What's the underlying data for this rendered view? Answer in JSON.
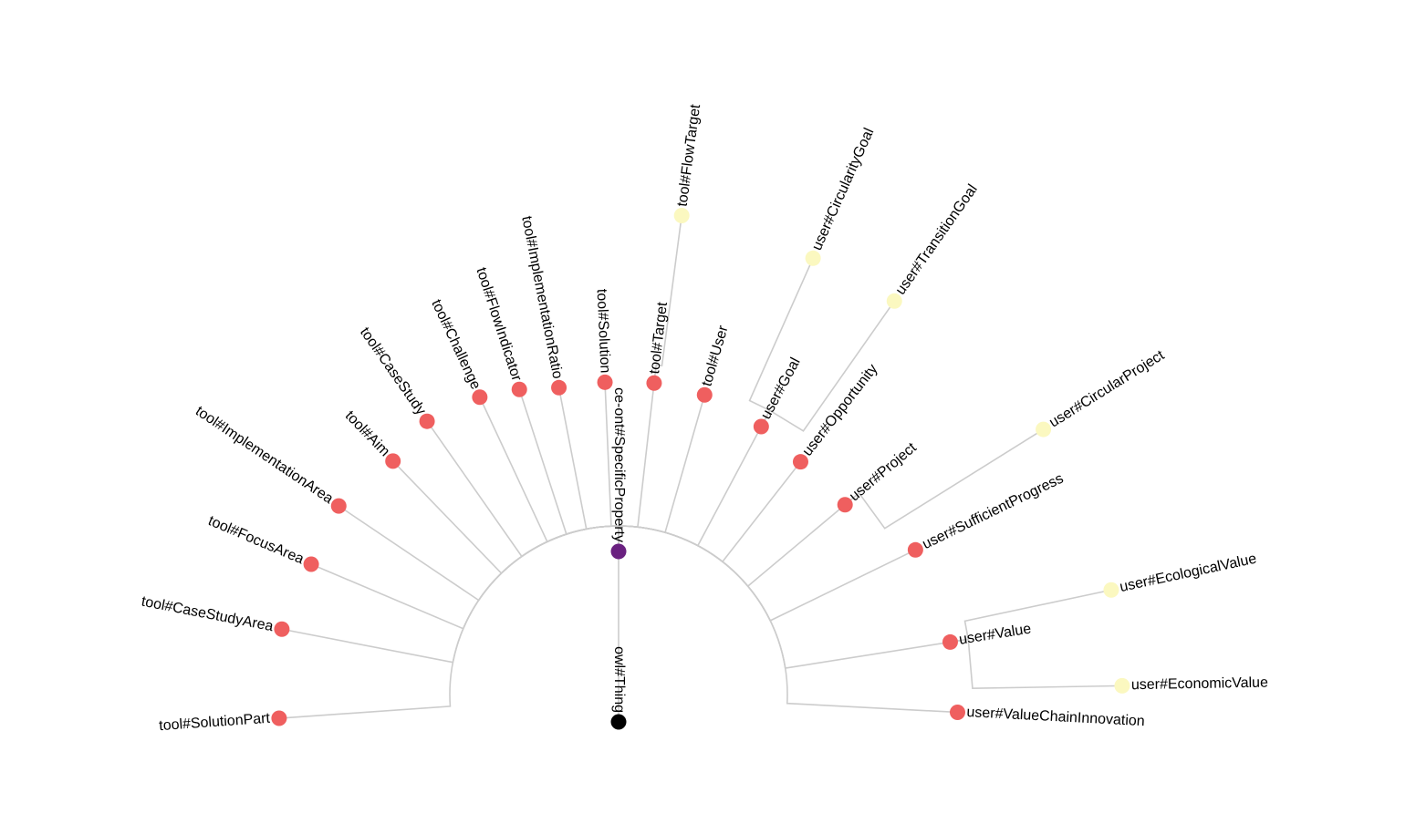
{
  "tree": {
    "root": {
      "label": "owl#Thing",
      "color": "#000000"
    },
    "hub": {
      "label": "ce-ont#SpecificProperty",
      "color": "#6a2180"
    },
    "children": [
      {
        "label": "tool#SolutionPart",
        "color": "#ef5f5f",
        "children": []
      },
      {
        "label": "tool#CaseStudyArea",
        "color": "#ef5f5f",
        "children": []
      },
      {
        "label": "tool#FocusArea",
        "color": "#ef5f5f",
        "children": []
      },
      {
        "label": "tool#ImplementationArea",
        "color": "#ef5f5f",
        "children": []
      },
      {
        "label": "tool#Aim",
        "color": "#ef5f5f",
        "children": []
      },
      {
        "label": "tool#CaseStudy",
        "color": "#ef5f5f",
        "children": []
      },
      {
        "label": "tool#Challenge",
        "color": "#ef5f5f",
        "children": []
      },
      {
        "label": "tool#FlowIndicator",
        "color": "#ef5f5f",
        "children": []
      },
      {
        "label": "tool#ImplementationRatio",
        "color": "#ef5f5f",
        "children": []
      },
      {
        "label": "tool#Solution",
        "color": "#ef5f5f",
        "children": []
      },
      {
        "label": "tool#Target",
        "color": "#ef5f5f",
        "children": [
          {
            "label": "tool#FlowTarget",
            "color": "#fbf8c0"
          }
        ]
      },
      {
        "label": "tool#User",
        "color": "#ef5f5f",
        "children": []
      },
      {
        "label": "user#Goal",
        "color": "#ef5f5f",
        "children": [
          {
            "label": "user#CircularityGoal",
            "color": "#fbf8c0"
          },
          {
            "label": "user#TransitionGoal",
            "color": "#fbf8c0"
          }
        ]
      },
      {
        "label": "user#Opportunity",
        "color": "#ef5f5f",
        "children": []
      },
      {
        "label": "user#Project",
        "color": "#ef5f5f",
        "children": [
          {
            "label": "user#CircularProject",
            "color": "#fbf8c0"
          }
        ]
      },
      {
        "label": "user#SufficientProgress",
        "color": "#ef5f5f",
        "children": []
      },
      {
        "label": "user#Value",
        "color": "#ef5f5f",
        "children": [
          {
            "label": "user#EcologicalValue",
            "color": "#fbf8c0"
          },
          {
            "label": "user#EconomicValue",
            "color": "#fbf8c0"
          }
        ]
      },
      {
        "label": "user#ValueChainInnovation",
        "color": "#ef5f5f",
        "children": []
      }
    ]
  }
}
